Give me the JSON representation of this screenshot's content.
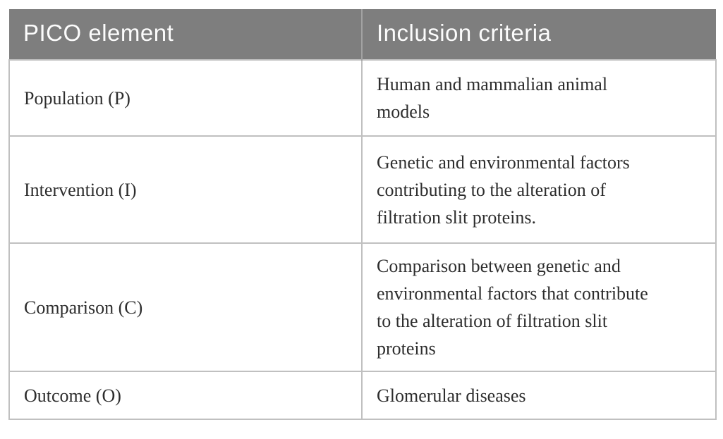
{
  "table": {
    "columns": [
      {
        "label": "PICO element"
      },
      {
        "label": "Inclusion criteria"
      }
    ],
    "rows": [
      {
        "element": "Population (P)",
        "criteria": "Human and mammalian animal\nmodels"
      },
      {
        "element": "Intervention (I)",
        "criteria": "Genetic and environmental factors\ncontributing to the alteration of\nfiltration slit proteins."
      },
      {
        "element": "Comparison (C)",
        "criteria": "Comparison between genetic and\nenvironmental factors that contribute\nto the alteration of filtration slit\nproteins"
      },
      {
        "element": "Outcome (O)",
        "criteria": "Glomerular diseases"
      }
    ],
    "colors": {
      "header_bg": "#7e7e7e",
      "header_text": "#fcfcfc",
      "header_divider": "#a2a2a2",
      "body_text": "#2d2d2d",
      "border": "#c0c0c0",
      "page_bg": "#ffffff"
    }
  }
}
